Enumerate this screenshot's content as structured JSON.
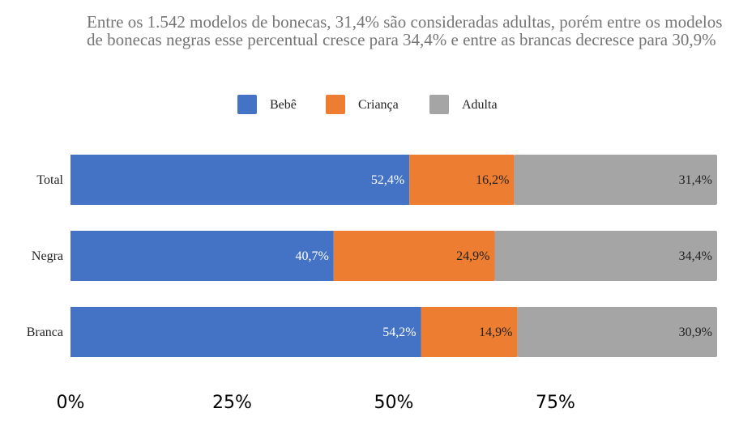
{
  "chart_data": {
    "type": "bar",
    "orientation": "horizontal",
    "stacked": true,
    "title": "Entre os 1.542 modelos de bonecas, 31,4% são consideradas adultas, porém entre os modelos de bonecas negras esse percentual cresce para 34,4% e entre as brancas decresce para 30,9%",
    "categories": [
      "Total",
      "Negra",
      "Branca"
    ],
    "series": [
      {
        "name": "Bebê",
        "color": "#4472c4",
        "label_color": "#ffffff",
        "values": [
          52.4,
          40.7,
          54.2
        ],
        "labels": [
          "52,4%",
          "40,7%",
          "54,2%"
        ]
      },
      {
        "name": "Criança",
        "color": "#ed7d31",
        "label_color": "#222222",
        "values": [
          16.2,
          24.9,
          14.9
        ],
        "labels": [
          "16,2%",
          "24,9%",
          "14,9%"
        ]
      },
      {
        "name": "Adulta",
        "color": "#a5a5a5",
        "label_color": "#222222",
        "values": [
          31.4,
          34.4,
          30.9
        ],
        "labels": [
          "31,4%",
          "34,4%",
          "30,9%"
        ]
      }
    ],
    "xlim": [
      0,
      100
    ],
    "x_ticks": [
      0,
      25,
      50,
      75
    ],
    "x_tick_labels": [
      "0%",
      "25%",
      "50%",
      "75%"
    ],
    "grid": false,
    "legend_position": "top-center"
  }
}
